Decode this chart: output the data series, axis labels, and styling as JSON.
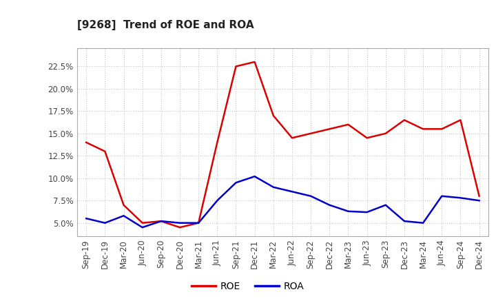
{
  "title": "[9268]  Trend of ROE and ROA",
  "x_labels": [
    "Sep-19",
    "Dec-19",
    "Mar-20",
    "Jun-20",
    "Sep-20",
    "Dec-20",
    "Mar-21",
    "Jun-21",
    "Sep-21",
    "Dec-21",
    "Mar-22",
    "Jun-22",
    "Sep-22",
    "Dec-22",
    "Mar-23",
    "Jun-23",
    "Sep-23",
    "Dec-23",
    "Mar-24",
    "Jun-24",
    "Sep-24",
    "Dec-24"
  ],
  "roe": [
    14.0,
    13.0,
    7.0,
    5.0,
    5.2,
    4.5,
    5.0,
    14.0,
    22.5,
    23.0,
    17.0,
    14.5,
    15.0,
    15.5,
    16.0,
    14.5,
    15.0,
    16.5,
    15.5,
    15.5,
    16.5,
    8.0
  ],
  "roa": [
    5.5,
    5.0,
    5.8,
    4.5,
    5.2,
    5.0,
    5.0,
    7.5,
    9.5,
    10.2,
    9.0,
    8.5,
    8.0,
    7.0,
    6.3,
    6.2,
    7.0,
    5.2,
    5.0,
    8.0,
    7.8,
    7.5
  ],
  "roe_color": "#dd0000",
  "roa_color": "#0000cc",
  "bg_color": "#ffffff",
  "plot_bg_color": "#ffffff",
  "grid_color": "#bbbbbb",
  "ylim": [
    3.5,
    24.5
  ],
  "yticks": [
    5.0,
    7.5,
    10.0,
    12.5,
    15.0,
    17.5,
    20.0,
    22.5
  ],
  "legend_roe": "ROE",
  "legend_roa": "ROA",
  "title_fontsize": 11,
  "tick_fontsize": 8.5,
  "line_width": 1.8
}
